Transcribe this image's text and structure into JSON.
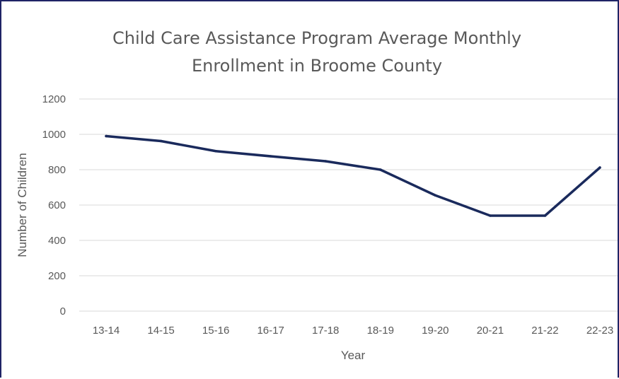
{
  "chart_data": {
    "type": "line",
    "title_lines": [
      "Child Care Assistance Program Average Monthly",
      "Enrollment in Broome County"
    ],
    "xlabel": "Year",
    "ylabel": "Number of Children",
    "categories": [
      "13-14",
      "14-15",
      "15-16",
      "16-17",
      "17-18",
      "18-19",
      "19-20",
      "20-21",
      "21-22",
      "22-23"
    ],
    "values": [
      990,
      962,
      905,
      876,
      848,
      800,
      655,
      540,
      540,
      812
    ],
    "ylim": [
      0,
      1200
    ],
    "yticks": [
      0,
      200,
      400,
      600,
      800,
      1000,
      1200
    ],
    "grid": true,
    "legend": "none",
    "line_color": "#1a2a5c",
    "grid_color": "#d9d9d9",
    "frame_color": "#1f2466"
  }
}
